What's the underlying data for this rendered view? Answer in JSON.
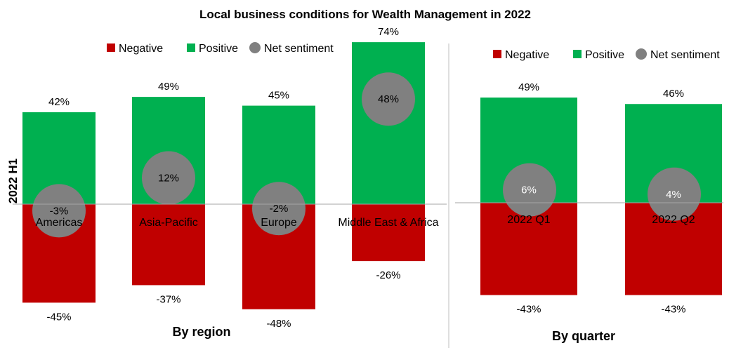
{
  "chart_data": [
    {
      "type": "bar",
      "title": "Local business conditions for Wealth Management in 2022",
      "ylabel": "2022 H1",
      "xlabel": "By region",
      "legend": [
        "Negative",
        "Positive",
        "Net sentiment"
      ],
      "legend_position": "top",
      "categories": [
        "Americas",
        "Asia-Pacific",
        "Europe",
        "Middle East & Africa"
      ],
      "series": [
        {
          "name": "Negative",
          "values": [
            -45,
            -37,
            -48,
            -26
          ],
          "labels": [
            "-45%",
            "-37%",
            "-48%",
            "-26%"
          ]
        },
        {
          "name": "Positive",
          "values": [
            42,
            49,
            45,
            74
          ],
          "labels": [
            "42%",
            "49%",
            "45%",
            "74%"
          ]
        },
        {
          "name": "Net sentiment",
          "values": [
            -3,
            12,
            -2,
            48
          ],
          "labels": [
            "-3%",
            "12%",
            "-2%",
            "48%"
          ]
        }
      ],
      "grid": false
    },
    {
      "type": "bar",
      "xlabel": "By quarter",
      "legend": [
        "Negative",
        "Positive",
        "Net sentiment"
      ],
      "legend_position": "top",
      "categories": [
        "2022 Q1",
        "2022 Q2"
      ],
      "series": [
        {
          "name": "Negative",
          "values": [
            -43,
            -43
          ],
          "labels": [
            "-43%",
            "-43%"
          ]
        },
        {
          "name": "Positive",
          "values": [
            49,
            46
          ],
          "labels": [
            "49%",
            "46%"
          ]
        },
        {
          "name": "Net sentiment",
          "values": [
            6,
            4
          ],
          "labels": [
            "6%",
            "4%"
          ]
        }
      ],
      "grid": false
    }
  ],
  "colors": {
    "negative": "#c00000",
    "positive": "#00b050",
    "net": "#808080"
  }
}
